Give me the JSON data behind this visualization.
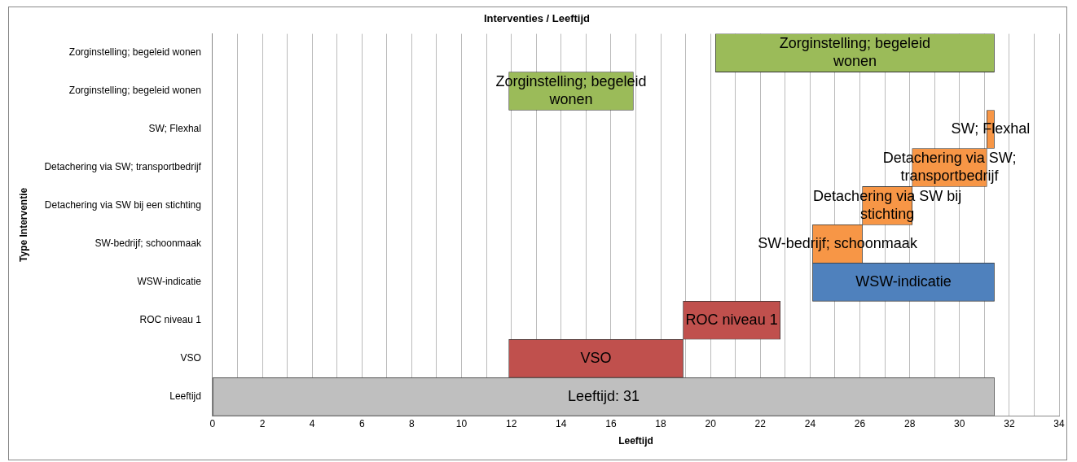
{
  "chart_data": {
    "type": "bar",
    "orientation": "horizontal",
    "title": "Interventies / Leeftijd",
    "xlabel": "Leeftijd",
    "ylabel": "Type Interventie",
    "categories": [
      "Zorginstelling; begeleid wonen",
      "Zorginstelling; begeleid wonen",
      "SW; Flexhal",
      "Detachering via SW; transportbedrijf",
      "Detachering via SW bij een stichting",
      "SW-bedrijf; schoonmaak",
      "WSW-indicatie",
      "ROC niveau 1",
      "VSO",
      "Leeftijd"
    ],
    "base": [
      20.2,
      11.9,
      31.1,
      28.1,
      26.1,
      24.1,
      24.1,
      18.9,
      11.9,
      0
    ],
    "values": [
      11.2,
      5.0,
      0.3,
      3.0,
      2.0,
      2.0,
      7.3,
      3.9,
      7.0,
      31.4
    ],
    "colors": [
      "#9bbb59",
      "#9bbb59",
      "#f79646",
      "#f79646",
      "#f79646",
      "#f79646",
      "#4f81bd",
      "#c0504d",
      "#c0504d",
      "#bfbfbf"
    ],
    "value_labels": [
      "Zorginstelling; begeleid wonen",
      "Zorginstelling; begeleid wonen",
      "SW; Flexhal",
      "Detachering via SW; transportbedrijf",
      "Detachering via SW bij stichting",
      "SW-bedrijf; schoonmaak",
      "WSW-indicatie",
      "ROC niveau 1",
      "VSO",
      "Leeftijd: 31"
    ],
    "xlim": [
      0,
      34
    ],
    "xticks": [
      0,
      {
        "value": 1,
        "label": null
      },
      2,
      {
        "value": 3,
        "label": null
      },
      4,
      {
        "value": 5,
        "label": null
      },
      6,
      {
        "value": 7,
        "label": null
      },
      8,
      {
        "value": 9,
        "label": null
      },
      10,
      {
        "value": 11,
        "label": null
      },
      12,
      {
        "value": 13,
        "label": null
      },
      14,
      {
        "value": 15,
        "label": null
      },
      16,
      {
        "value": 17,
        "label": null
      },
      18,
      {
        "value": 19,
        "label": null
      },
      20,
      {
        "value": 21,
        "label": null
      },
      22,
      {
        "value": 23,
        "label": null
      },
      24,
      {
        "value": 25,
        "label": null
      },
      26,
      {
        "value": 27,
        "label": null
      },
      28,
      {
        "value": 29,
        "label": null
      },
      30,
      {
        "value": 31,
        "label": null
      },
      32,
      {
        "value": 33,
        "label": null
      },
      34
    ],
    "grid": "x",
    "legend": false
  }
}
